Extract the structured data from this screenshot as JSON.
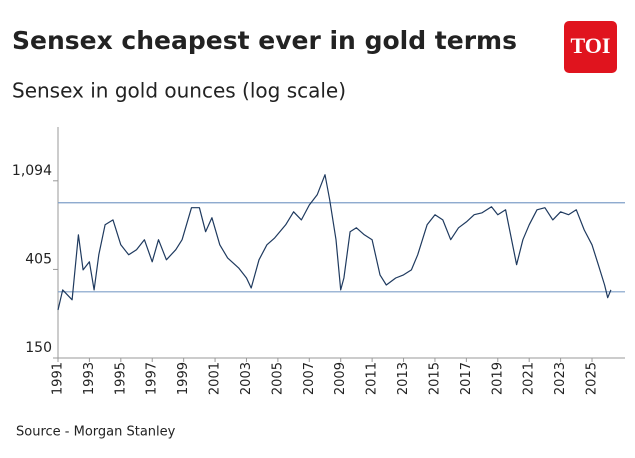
{
  "logo": "TOI",
  "chart_data": {
    "type": "line",
    "title": "Sensex cheapest ever in gold terms",
    "subtitle": "Sensex in gold ounces (log scale)",
    "source": "Source - Morgan Stanley",
    "log_scale": true,
    "color": "#1f3a5f",
    "reference_color": "#7f9fc8",
    "reference_lines": [
      855,
      315
    ],
    "xlim": [
      1991,
      2027.1
    ],
    "xticks": [
      1991,
      1993,
      1995,
      1997,
      1999,
      2001,
      2003,
      2005,
      2007,
      2009,
      2011,
      2013,
      2015,
      2017,
      2019,
      2021,
      2023,
      2025
    ],
    "ylim": [
      150,
      2000
    ],
    "yticks": [
      150,
      405,
      {
        "value": 1094,
        "label": "1,094"
      }
    ],
    "x": [
      1991.0,
      1991.3,
      1991.9,
      1992.3,
      1992.6,
      1993.0,
      1993.3,
      1993.6,
      1994.0,
      1994.5,
      1995.0,
      1995.5,
      1996.0,
      1996.5,
      1997.0,
      1997.4,
      1997.9,
      1998.5,
      1998.9,
      1999.5,
      2000.0,
      2000.4,
      2000.8,
      2001.3,
      2001.8,
      2002.5,
      2003.0,
      2003.3,
      2003.8,
      2004.3,
      2004.8,
      2005.5,
      2006.0,
      2006.5,
      2007.0,
      2007.5,
      2008.0,
      2008.3,
      2008.7,
      2009.0,
      2009.2,
      2009.6,
      2010.0,
      2010.5,
      2011.0,
      2011.5,
      2011.9,
      2012.5,
      2013.0,
      2013.5,
      2013.9,
      2014.5,
      2015.0,
      2015.5,
      2016.0,
      2016.5,
      2017.0,
      2017.5,
      2018.0,
      2018.6,
      2019.0,
      2019.5,
      2020.2,
      2020.6,
      2021.0,
      2021.5,
      2022.0,
      2022.5,
      2023.0,
      2023.5,
      2024.0,
      2024.5,
      2025.0,
      2025.4,
      2025.8,
      2026.0,
      2026.2
    ],
    "values": [
      257,
      322,
      288,
      597,
      403,
      441,
      322,
      477,
      668,
      706,
      534,
      477,
      505,
      565,
      441,
      565,
      451,
      505,
      565,
      809,
      809,
      618,
      723,
      534,
      461,
      412,
      368,
      329,
      451,
      534,
      577,
      668,
      773,
      706,
      834,
      935,
      1172,
      884,
      565,
      322,
      368,
      618,
      646,
      597,
      565,
      381,
      340,
      368,
      381,
      403,
      477,
      668,
      748,
      706,
      565,
      646,
      690,
      748,
      764,
      818,
      748,
      790,
      427,
      565,
      668,
      790,
      809,
      706,
      773,
      748,
      790,
      631,
      534,
      427,
      340,
      295,
      322
    ]
  }
}
